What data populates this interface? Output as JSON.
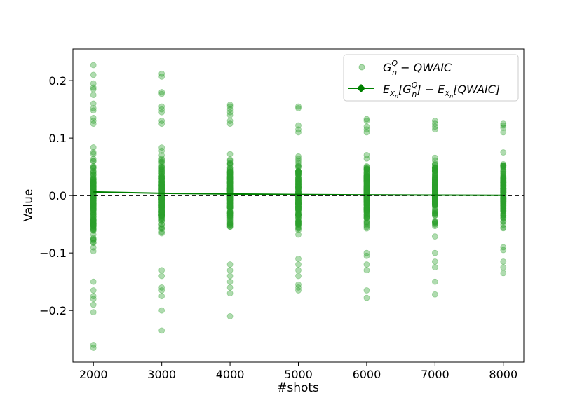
{
  "chart_data": {
    "type": "scatter",
    "title": "",
    "xlabel": "#shots",
    "ylabel": "Value",
    "xlim": [
      1700,
      8300
    ],
    "ylim": [
      -0.29,
      0.255
    ],
    "x_ticks": [
      2000,
      3000,
      4000,
      5000,
      6000,
      7000,
      8000
    ],
    "y_ticks": [
      -0.2,
      -0.1,
      0.0,
      0.1,
      0.2
    ],
    "y_tick_labels": [
      "−0.2",
      "−0.1",
      "0.0",
      "0.1",
      "0.2"
    ],
    "reference_line": {
      "y": 0.0,
      "style": "dashed",
      "color": "#000000"
    },
    "grid": false,
    "legend": {
      "position": "top-right"
    },
    "colors": {
      "scatter": "#2ca02c",
      "line": "#008000"
    },
    "series": [
      {
        "name": "G_n^Q − QWAIC",
        "legend_label": {
          "base": "G",
          "sub": "n",
          "sup": "Q",
          "rest": " − QWAIC"
        },
        "kind": "scatter",
        "groups": [
          {
            "x": 2000,
            "extremes": [
              0.227,
              0.21,
              0.195,
              0.188,
              0.185,
              0.175,
              0.16,
              0.152,
              0.148,
              0.135,
              0.13,
              0.125,
              -0.15,
              -0.165,
              -0.175,
              -0.18,
              -0.19,
              -0.203,
              -0.26,
              -0.265
            ],
            "range": [
              -0.15,
              0.13
            ]
          },
          {
            "x": 3000,
            "extremes": [
              0.212,
              0.207,
              0.18,
              0.177,
              0.155,
              0.15,
              0.145,
              0.13,
              0.125,
              -0.13,
              -0.14,
              -0.16,
              -0.165,
              -0.175,
              -0.2,
              -0.235
            ],
            "range": [
              -0.125,
              0.125
            ]
          },
          {
            "x": 4000,
            "extremes": [
              0.158,
              0.155,
              0.15,
              0.145,
              0.14,
              0.13,
              0.125,
              -0.12,
              -0.13,
              -0.14,
              -0.15,
              -0.16,
              -0.17,
              -0.21
            ],
            "range": [
              -0.12,
              0.122
            ]
          },
          {
            "x": 5000,
            "extremes": [
              0.155,
              0.152,
              0.122,
              0.115,
              0.11,
              -0.11,
              -0.12,
              -0.13,
              -0.14,
              -0.155,
              -0.16,
              -0.165
            ],
            "range": [
              -0.11,
              0.11
            ]
          },
          {
            "x": 6000,
            "extremes": [
              0.133,
              0.13,
              0.12,
              0.115,
              0.11,
              -0.1,
              -0.105,
              -0.12,
              -0.13,
              -0.165,
              -0.178
            ],
            "range": [
              -0.1,
              0.11
            ]
          },
          {
            "x": 7000,
            "extremes": [
              0.13,
              0.125,
              0.12,
              0.115,
              -0.1,
              -0.115,
              -0.125,
              -0.15,
              -0.172
            ],
            "range": [
              -0.095,
              0.11
            ]
          },
          {
            "x": 8000,
            "extremes": [
              0.125,
              0.122,
              0.118,
              0.11,
              -0.09,
              -0.095,
              -0.115,
              -0.125,
              -0.135
            ],
            "range": [
              -0.09,
              0.105
            ]
          }
        ]
      },
      {
        "name": "E_{X_n}[G_n^Q] − E_{X_n}[QWAIC]",
        "kind": "line",
        "marker": "diamond",
        "x": [
          2000,
          3000,
          4000,
          5000,
          6000,
          7000,
          8000
        ],
        "y": [
          0.0065,
          0.004,
          0.0028,
          0.0018,
          0.0012,
          0.0008,
          0.0005
        ]
      }
    ]
  }
}
